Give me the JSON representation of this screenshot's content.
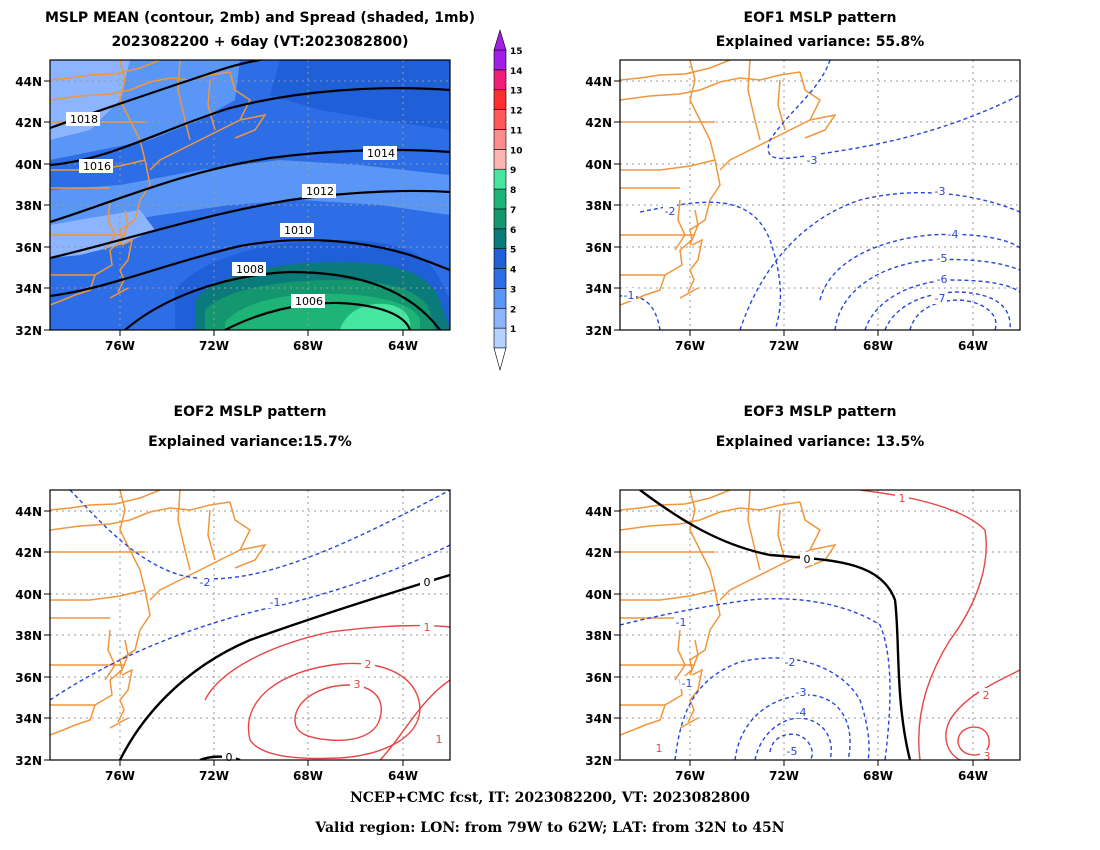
{
  "panels": {
    "mean": {
      "title1": "MSLP MEAN (contour, 2mb) and Spread (shaded, 1mb)",
      "title2": "2023082200 + 6day (VT:2023082800)"
    },
    "eof1": {
      "title1": "EOF1 MSLP pattern",
      "title2": "Explained variance: 55.8%"
    },
    "eof2": {
      "title1": "EOF2 MSLP pattern",
      "title2": "Explained variance:15.7%"
    },
    "eof3": {
      "title1": "EOF3 MSLP pattern",
      "title2": "Explained variance: 13.5%"
    }
  },
  "axes": {
    "lat_labels": [
      "44N",
      "42N",
      "40N",
      "38N",
      "36N",
      "34N",
      "32N"
    ],
    "lon_labels": [
      "76W",
      "72W",
      "68W",
      "64W"
    ]
  },
  "colorbar": {
    "labels": [
      "1",
      "2",
      "3",
      "4",
      "5",
      "6",
      "7",
      "8",
      "9",
      "10",
      "11",
      "12",
      "13",
      "14",
      "15"
    ],
    "colors": [
      "#b4d2ff",
      "#8cb4ff",
      "#5a96f5",
      "#2d6ee6",
      "#1f5fd8",
      "#0a7a7a",
      "#14966e",
      "#1eb478",
      "#46e6a0",
      "#ffb4b4",
      "#ff8c8c",
      "#ff5a5a",
      "#ff2d2d",
      "#f01e78",
      "#a01ee6"
    ]
  },
  "contour_labels": {
    "mean": [
      "1018",
      "1016",
      "1014",
      "1012",
      "1010",
      "1008",
      "1006"
    ],
    "eof1": [
      "-1",
      "-2",
      "-3",
      "-3",
      "-4",
      "-5",
      "-6",
      "-7"
    ],
    "eof2": [
      "-2",
      "-1",
      "0",
      "0",
      "1",
      "1",
      "2",
      "3"
    ],
    "eof3": [
      "1",
      "0",
      "-1",
      "-1",
      "-2",
      "-3",
      "-4",
      "-5",
      "2",
      "3",
      "1"
    ]
  },
  "footer": {
    "line1": "NCEP+CMC fcst, IT: 2023082200, VT: 2023082800",
    "line2": "Valid region: LON: from 79W to 62W; LAT: from 32N to 45N"
  }
}
